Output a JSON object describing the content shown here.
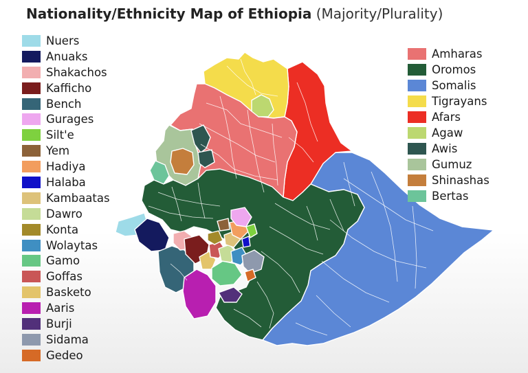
{
  "title": {
    "main": "Nationality/Ethnicity Map of Ethiopia",
    "sub": "(Majority/Plurality)"
  },
  "legend_left": [
    {
      "label": "Nuers",
      "color": "#9edbe8"
    },
    {
      "label": "Anuaks",
      "color": "#141a5e"
    },
    {
      "label": "Shakachos",
      "color": "#f2aeb0"
    },
    {
      "label": "Kafficho",
      "color": "#7a1d1d"
    },
    {
      "label": "Bench",
      "color": "#356577"
    },
    {
      "label": "Gurages",
      "color": "#eea7ef"
    },
    {
      "label": "Silt'e",
      "color": "#7ed13f"
    },
    {
      "label": "Yem",
      "color": "#8c6239"
    },
    {
      "label": "Hadiya",
      "color": "#f29d5e"
    },
    {
      "label": "Halaba",
      "color": "#1010c8"
    },
    {
      "label": "Kambaatas",
      "color": "#ddc27a"
    },
    {
      "label": "Dawro",
      "color": "#c5dc97"
    },
    {
      "label": "Konta",
      "color": "#a38a2a"
    },
    {
      "label": "Wolaytas",
      "color": "#3f8fc2"
    },
    {
      "label": "Gamo",
      "color": "#66c784"
    },
    {
      "label": "Goffas",
      "color": "#c95656"
    },
    {
      "label": "Basketo",
      "color": "#e3c46a"
    },
    {
      "label": "Aaris",
      "color": "#b81fb0"
    },
    {
      "label": "Burji",
      "color": "#52307a"
    },
    {
      "label": "Sidama",
      "color": "#8e99ad"
    },
    {
      "label": "Gedeo",
      "color": "#d66a26"
    }
  ],
  "legend_right": [
    {
      "label": "Amharas",
      "color": "#e97272"
    },
    {
      "label": "Oromos",
      "color": "#235c37"
    },
    {
      "label": "Somalis",
      "color": "#5b87d6"
    },
    {
      "label": "Tigrayans",
      "color": "#f4dc4b"
    },
    {
      "label": "Afars",
      "color": "#ec2e24"
    },
    {
      "label": "Agaw",
      "color": "#bcd870"
    },
    {
      "label": "Awis",
      "color": "#2e5650"
    },
    {
      "label": "Gumuz",
      "color": "#a9c59b"
    },
    {
      "label": "Shinashas",
      "color": "#c47e3c"
    },
    {
      "label": "Bertas",
      "color": "#6cc49a"
    }
  ],
  "regions": [
    {
      "name": "Somalis",
      "color": "#5b87d6"
    },
    {
      "name": "Afars",
      "color": "#ec2e24"
    },
    {
      "name": "Tigrayans",
      "color": "#f4dc4b"
    },
    {
      "name": "Amharas",
      "color": "#e97272"
    },
    {
      "name": "Agaw",
      "color": "#bcd870"
    },
    {
      "name": "Gumuz",
      "color": "#a9c59b"
    },
    {
      "name": "Shinashas",
      "color": "#c47e3c"
    },
    {
      "name": "Awis",
      "color": "#2e5650"
    },
    {
      "name": "Bertas",
      "color": "#6cc49a"
    },
    {
      "name": "Oromos",
      "color": "#235c37"
    },
    {
      "name": "Nuers",
      "color": "#9edbe8"
    },
    {
      "name": "Anuaks",
      "color": "#141a5e"
    },
    {
      "name": "Bench",
      "color": "#356577"
    },
    {
      "name": "Shakachos",
      "color": "#f2aeb0"
    },
    {
      "name": "Kafficho",
      "color": "#7a1d1d"
    },
    {
      "name": "Aaris",
      "color": "#b81fb0"
    },
    {
      "name": "Basketo",
      "color": "#e3c46a"
    },
    {
      "name": "Goffas",
      "color": "#c95656"
    },
    {
      "name": "Gamo",
      "color": "#66c784"
    },
    {
      "name": "Dawro",
      "color": "#c5dc97"
    },
    {
      "name": "Konta",
      "color": "#a38a2a"
    },
    {
      "name": "Wolaytas",
      "color": "#3f8fc2"
    },
    {
      "name": "Kambaatas",
      "color": "#ddc27a"
    },
    {
      "name": "Hadiya",
      "color": "#f29d5e"
    },
    {
      "name": "Yem",
      "color": "#8c6239"
    },
    {
      "name": "Gurages",
      "color": "#eea7ef"
    },
    {
      "name": "Silt'e",
      "color": "#7ed13f"
    },
    {
      "name": "Halaba",
      "color": "#1010c8"
    },
    {
      "name": "Sidama",
      "color": "#8e99ad"
    },
    {
      "name": "Gedeo",
      "color": "#d66a26"
    },
    {
      "name": "Burji",
      "color": "#52307a"
    }
  ]
}
